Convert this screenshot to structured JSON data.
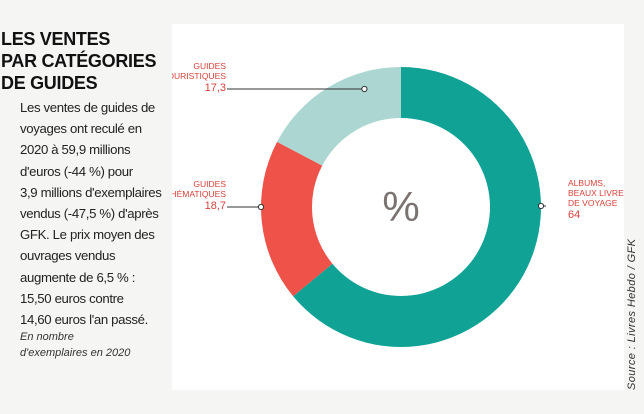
{
  "header": {
    "title_lines": [
      "LES VENTES",
      "PAR CATÉGORIES",
      "DE GUIDES"
    ]
  },
  "intro": {
    "lines": [
      "Les ventes de guides de",
      "voyages ont reculé en",
      "2020 à 59,9 millions",
      "d'euros (-44 %) pour",
      "3,9 millions d'exemplaires",
      "vendus (-47,5 %) d'après",
      "GFK. Le prix moyen des",
      "ouvrages vendus",
      "augmente de 6,5 % :",
      "15,50 euros contre",
      "14,60 euros l'an passé."
    ]
  },
  "note": {
    "lines": [
      "En nombre",
      "d'exemplaires en 2020"
    ]
  },
  "source": "Source : Livres Hebdo / GFK",
  "chart_data": {
    "type": "pie",
    "style": "donut",
    "center_label": "%",
    "unit": "%",
    "slices": [
      {
        "name_lines": [
          "ALBUMS,",
          "BEAUX LIVRES",
          "DE VOYAGE"
        ],
        "value": 64,
        "value_label": "64",
        "color": "#0fa295"
      },
      {
        "name_lines": [
          "GUIDES",
          "THÉMATIQUES"
        ],
        "value": 18.7,
        "value_label": "18,7",
        "color": "#ef5249"
      },
      {
        "name_lines": [
          "GUIDES",
          "TOURISTIQUES"
        ],
        "value": 17.3,
        "value_label": "17,3",
        "color": "#abd6d1"
      }
    ],
    "label_color": "#d9413a"
  }
}
